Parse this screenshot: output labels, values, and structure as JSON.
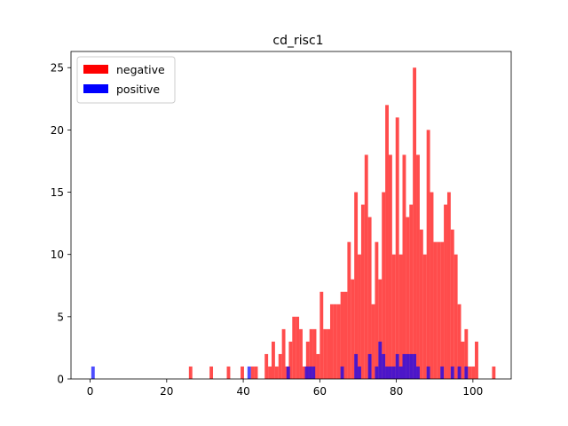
{
  "chart_data": {
    "type": "bar",
    "title": "cd_risc1",
    "xlabel": "",
    "ylabel": "",
    "xlim": [
      -5,
      110
    ],
    "ylim": [
      0,
      26.3
    ],
    "xticks": [
      0,
      20,
      40,
      60,
      80,
      100
    ],
    "yticks": [
      0,
      5,
      10,
      15,
      20,
      25
    ],
    "grid": false,
    "legend_position": "top-left",
    "bin_width": 0.9,
    "series": [
      {
        "name": "negative",
        "color": "#ff0000",
        "opacity": 0.7,
        "legend_opacity": 1.0,
        "bins": [
          {
            "x": 25.8,
            "y": 1
          },
          {
            "x": 31.2,
            "y": 1
          },
          {
            "x": 35.7,
            "y": 1
          },
          {
            "x": 39.3,
            "y": 1
          },
          {
            "x": 42.0,
            "y": 1
          },
          {
            "x": 42.9,
            "y": 1
          },
          {
            "x": 45.6,
            "y": 2
          },
          {
            "x": 46.5,
            "y": 1
          },
          {
            "x": 47.4,
            "y": 3
          },
          {
            "x": 48.3,
            "y": 1
          },
          {
            "x": 49.2,
            "y": 2
          },
          {
            "x": 50.1,
            "y": 4
          },
          {
            "x": 51.0,
            "y": 1
          },
          {
            "x": 51.9,
            "y": 3
          },
          {
            "x": 52.8,
            "y": 5
          },
          {
            "x": 53.7,
            "y": 5
          },
          {
            "x": 54.6,
            "y": 4
          },
          {
            "x": 55.5,
            "y": 1
          },
          {
            "x": 56.4,
            "y": 3
          },
          {
            "x": 57.3,
            "y": 4
          },
          {
            "x": 58.2,
            "y": 4
          },
          {
            "x": 59.1,
            "y": 2
          },
          {
            "x": 60.0,
            "y": 7
          },
          {
            "x": 60.9,
            "y": 4
          },
          {
            "x": 61.8,
            "y": 4
          },
          {
            "x": 62.7,
            "y": 6
          },
          {
            "x": 63.6,
            "y": 6
          },
          {
            "x": 64.5,
            "y": 6
          },
          {
            "x": 65.4,
            "y": 7
          },
          {
            "x": 66.3,
            "y": 7
          },
          {
            "x": 67.2,
            "y": 11
          },
          {
            "x": 68.1,
            "y": 8
          },
          {
            "x": 69.0,
            "y": 15
          },
          {
            "x": 69.9,
            "y": 10
          },
          {
            "x": 70.8,
            "y": 14
          },
          {
            "x": 71.7,
            "y": 18
          },
          {
            "x": 72.6,
            "y": 13
          },
          {
            "x": 73.5,
            "y": 6
          },
          {
            "x": 74.4,
            "y": 11
          },
          {
            "x": 75.3,
            "y": 8
          },
          {
            "x": 76.2,
            "y": 15
          },
          {
            "x": 77.1,
            "y": 22
          },
          {
            "x": 78.0,
            "y": 18
          },
          {
            "x": 78.9,
            "y": 10
          },
          {
            "x": 79.8,
            "y": 21
          },
          {
            "x": 80.7,
            "y": 10
          },
          {
            "x": 81.6,
            "y": 18
          },
          {
            "x": 82.5,
            "y": 13
          },
          {
            "x": 83.4,
            "y": 14
          },
          {
            "x": 84.3,
            "y": 25
          },
          {
            "x": 85.2,
            "y": 18
          },
          {
            "x": 86.1,
            "y": 12
          },
          {
            "x": 87.0,
            "y": 10
          },
          {
            "x": 87.9,
            "y": 20
          },
          {
            "x": 88.8,
            "y": 15
          },
          {
            "x": 89.7,
            "y": 11
          },
          {
            "x": 90.6,
            "y": 11
          },
          {
            "x": 91.5,
            "y": 11
          },
          {
            "x": 92.4,
            "y": 14
          },
          {
            "x": 93.3,
            "y": 15
          },
          {
            "x": 94.2,
            "y": 12
          },
          {
            "x": 95.1,
            "y": 10
          },
          {
            "x": 96.0,
            "y": 6
          },
          {
            "x": 96.9,
            "y": 3
          },
          {
            "x": 97.8,
            "y": 4
          },
          {
            "x": 98.7,
            "y": 1
          },
          {
            "x": 99.6,
            "y": 1
          },
          {
            "x": 100.5,
            "y": 3
          },
          {
            "x": 105.0,
            "y": 1
          }
        ]
      },
      {
        "name": "positive",
        "color": "#0000ff",
        "opacity": 0.7,
        "legend_opacity": 1.0,
        "bins": [
          {
            "x": 0.3,
            "y": 1
          },
          {
            "x": 41.1,
            "y": 1
          },
          {
            "x": 51.3,
            "y": 1
          },
          {
            "x": 56.1,
            "y": 1
          },
          {
            "x": 57.0,
            "y": 1
          },
          {
            "x": 57.9,
            "y": 1
          },
          {
            "x": 65.4,
            "y": 1
          },
          {
            "x": 69.0,
            "y": 2
          },
          {
            "x": 69.9,
            "y": 1
          },
          {
            "x": 72.6,
            "y": 2
          },
          {
            "x": 74.4,
            "y": 1
          },
          {
            "x": 75.3,
            "y": 3
          },
          {
            "x": 76.2,
            "y": 2
          },
          {
            "x": 77.1,
            "y": 1
          },
          {
            "x": 78.0,
            "y": 1
          },
          {
            "x": 78.9,
            "y": 1
          },
          {
            "x": 79.8,
            "y": 2
          },
          {
            "x": 80.7,
            "y": 1
          },
          {
            "x": 81.6,
            "y": 2
          },
          {
            "x": 82.5,
            "y": 2
          },
          {
            "x": 83.4,
            "y": 2
          },
          {
            "x": 84.3,
            "y": 2
          },
          {
            "x": 85.2,
            "y": 1
          },
          {
            "x": 87.9,
            "y": 1
          },
          {
            "x": 91.5,
            "y": 1
          },
          {
            "x": 94.2,
            "y": 1
          },
          {
            "x": 96.0,
            "y": 1
          },
          {
            "x": 97.8,
            "y": 1
          }
        ]
      }
    ]
  }
}
